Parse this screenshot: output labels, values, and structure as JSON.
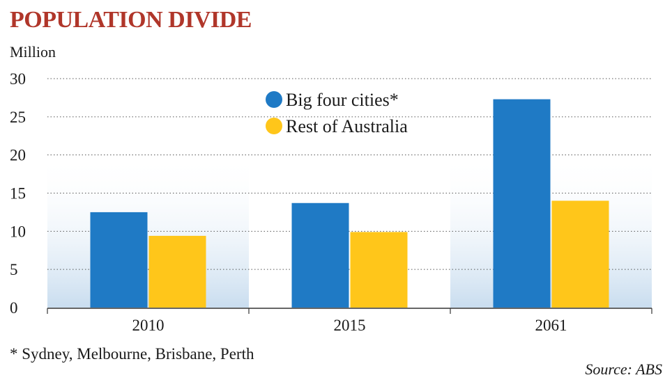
{
  "chart_data": {
    "type": "bar",
    "title": "POPULATION DIVIDE",
    "ylabel": "Million",
    "xlabel": "",
    "categories": [
      "2010",
      "2015",
      "2061"
    ],
    "series": [
      {
        "name": "Big four cities*",
        "color": "#1f7ac5",
        "values": [
          12.5,
          13.7,
          27.3
        ]
      },
      {
        "name": "Rest of Australia",
        "color": "#ffc61a",
        "values": [
          9.4,
          9.9,
          14.0
        ]
      }
    ],
    "ylim": [
      0,
      30
    ],
    "yticks": [
      0,
      5,
      10,
      15,
      20,
      25,
      30
    ],
    "grid": true,
    "legend": "top-center",
    "footnote": "* Sydney, Melbourne, Brisbane, Perth",
    "source": "Source: ABS"
  }
}
